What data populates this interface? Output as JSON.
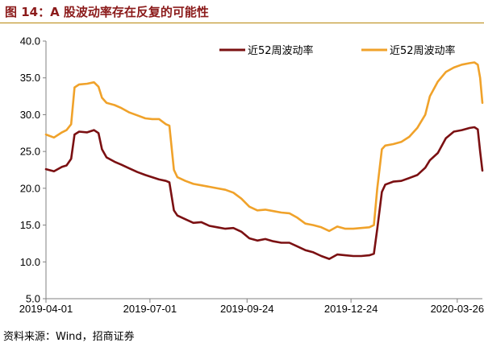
{
  "header": {
    "title": "图 14：A 股波动率存在反复的可能性"
  },
  "footer": {
    "source": "资料来源：Wind，招商证券"
  },
  "colors": {
    "title": "#8B1A1A",
    "rule": "#B8860B",
    "series_dark": "#7B1012",
    "series_light": "#F0A22A",
    "axis": "#808080"
  },
  "chart_data": {
    "type": "line",
    "title": "",
    "xlabel": "",
    "ylabel": "",
    "ylim": [
      5.0,
      40.0
    ],
    "yticks": [
      5.0,
      10.0,
      15.0,
      20.0,
      25.0,
      30.0,
      35.0,
      40.0
    ],
    "ytick_labels": [
      "5.0",
      "10.0",
      "15.0",
      "20.0",
      "25.0",
      "30.0",
      "35.0",
      "40.0"
    ],
    "xlim": [
      "2019-04-01",
      "2020-04-17"
    ],
    "xtick_labels": [
      "2019-04-01",
      "2019-07-01",
      "2019-09-24",
      "2019-12-24",
      "2020-03-26"
    ],
    "legend_position": "top",
    "grid": false,
    "series": [
      {
        "name": "近52周波动率",
        "color_key": "series_dark",
        "points": [
          [
            "2019-04-01",
            22.6
          ],
          [
            "2019-04-08",
            22.3
          ],
          [
            "2019-04-15",
            22.9
          ],
          [
            "2019-04-19",
            23.1
          ],
          [
            "2019-04-23",
            24.0
          ],
          [
            "2019-04-26",
            27.3
          ],
          [
            "2019-04-30",
            27.7
          ],
          [
            "2019-05-07",
            27.6
          ],
          [
            "2019-05-13",
            27.9
          ],
          [
            "2019-05-17",
            27.5
          ],
          [
            "2019-05-20",
            25.3
          ],
          [
            "2019-05-24",
            24.2
          ],
          [
            "2019-05-31",
            23.6
          ],
          [
            "2019-06-06",
            23.2
          ],
          [
            "2019-06-13",
            22.7
          ],
          [
            "2019-06-20",
            22.2
          ],
          [
            "2019-06-27",
            21.8
          ],
          [
            "2019-07-03",
            21.5
          ],
          [
            "2019-07-09",
            21.2
          ],
          [
            "2019-07-15",
            21.0
          ],
          [
            "2019-07-18",
            20.8
          ],
          [
            "2019-07-22",
            17.0
          ],
          [
            "2019-07-25",
            16.3
          ],
          [
            "2019-08-01",
            15.8
          ],
          [
            "2019-08-08",
            15.3
          ],
          [
            "2019-08-15",
            15.4
          ],
          [
            "2019-08-22",
            14.9
          ],
          [
            "2019-08-29",
            14.7
          ],
          [
            "2019-09-05",
            14.5
          ],
          [
            "2019-09-12",
            14.6
          ],
          [
            "2019-09-19",
            14.1
          ],
          [
            "2019-09-26",
            13.2
          ],
          [
            "2019-10-03",
            12.9
          ],
          [
            "2019-10-10",
            13.1
          ],
          [
            "2019-10-17",
            12.8
          ],
          [
            "2019-10-24",
            12.6
          ],
          [
            "2019-10-31",
            12.6
          ],
          [
            "2019-11-07",
            12.1
          ],
          [
            "2019-11-14",
            11.6
          ],
          [
            "2019-11-21",
            11.3
          ],
          [
            "2019-11-28",
            10.8
          ],
          [
            "2019-12-05",
            10.4
          ],
          [
            "2019-12-12",
            11.0
          ],
          [
            "2019-12-19",
            10.9
          ],
          [
            "2019-12-26",
            10.8
          ],
          [
            "2020-01-02",
            10.8
          ],
          [
            "2020-01-09",
            10.9
          ],
          [
            "2020-01-13",
            11.1
          ],
          [
            "2020-01-16",
            14.5
          ],
          [
            "2020-01-20",
            19.5
          ],
          [
            "2020-01-23",
            20.5
          ],
          [
            "2020-01-30",
            20.9
          ],
          [
            "2020-02-06",
            21.0
          ],
          [
            "2020-02-13",
            21.4
          ],
          [
            "2020-02-20",
            21.8
          ],
          [
            "2020-02-27",
            22.8
          ],
          [
            "2020-03-02",
            23.8
          ],
          [
            "2020-03-09",
            24.8
          ],
          [
            "2020-03-16",
            26.8
          ],
          [
            "2020-03-23",
            27.7
          ],
          [
            "2020-03-30",
            27.9
          ],
          [
            "2020-04-06",
            28.2
          ],
          [
            "2020-04-10",
            28.3
          ],
          [
            "2020-04-13",
            28.0
          ],
          [
            "2020-04-15",
            25.0
          ],
          [
            "2020-04-17",
            22.4
          ]
        ]
      },
      {
        "name": "近52周波动率",
        "color_key": "series_light",
        "points": [
          [
            "2019-04-01",
            27.3
          ],
          [
            "2019-04-08",
            26.9
          ],
          [
            "2019-04-15",
            27.6
          ],
          [
            "2019-04-19",
            27.9
          ],
          [
            "2019-04-23",
            28.7
          ],
          [
            "2019-04-26",
            33.7
          ],
          [
            "2019-04-30",
            34.1
          ],
          [
            "2019-05-07",
            34.2
          ],
          [
            "2019-05-13",
            34.4
          ],
          [
            "2019-05-17",
            33.8
          ],
          [
            "2019-05-20",
            32.3
          ],
          [
            "2019-05-24",
            31.6
          ],
          [
            "2019-05-31",
            31.3
          ],
          [
            "2019-06-06",
            30.9
          ],
          [
            "2019-06-13",
            30.3
          ],
          [
            "2019-06-20",
            29.9
          ],
          [
            "2019-06-27",
            29.5
          ],
          [
            "2019-07-03",
            29.4
          ],
          [
            "2019-07-09",
            29.4
          ],
          [
            "2019-07-15",
            28.7
          ],
          [
            "2019-07-18",
            28.5
          ],
          [
            "2019-07-22",
            22.5
          ],
          [
            "2019-07-25",
            21.5
          ],
          [
            "2019-08-01",
            21.0
          ],
          [
            "2019-08-08",
            20.6
          ],
          [
            "2019-08-15",
            20.4
          ],
          [
            "2019-08-22",
            20.2
          ],
          [
            "2019-08-29",
            20.0
          ],
          [
            "2019-09-05",
            19.8
          ],
          [
            "2019-09-12",
            19.4
          ],
          [
            "2019-09-19",
            18.6
          ],
          [
            "2019-09-26",
            17.5
          ],
          [
            "2019-10-03",
            17.0
          ],
          [
            "2019-10-10",
            17.1
          ],
          [
            "2019-10-17",
            16.9
          ],
          [
            "2019-10-24",
            16.7
          ],
          [
            "2019-10-31",
            16.6
          ],
          [
            "2019-11-07",
            16.0
          ],
          [
            "2019-11-14",
            15.2
          ],
          [
            "2019-11-21",
            15.0
          ],
          [
            "2019-11-28",
            14.7
          ],
          [
            "2019-12-05",
            14.2
          ],
          [
            "2019-12-12",
            14.8
          ],
          [
            "2019-12-19",
            14.5
          ],
          [
            "2019-12-26",
            14.5
          ],
          [
            "2020-01-02",
            14.6
          ],
          [
            "2020-01-09",
            14.7
          ],
          [
            "2020-01-13",
            15.0
          ],
          [
            "2020-01-16",
            20.0
          ],
          [
            "2020-01-20",
            25.3
          ],
          [
            "2020-01-23",
            25.8
          ],
          [
            "2020-01-30",
            26.0
          ],
          [
            "2020-02-06",
            26.3
          ],
          [
            "2020-02-13",
            27.0
          ],
          [
            "2020-02-20",
            28.2
          ],
          [
            "2020-02-27",
            30.0
          ],
          [
            "2020-03-02",
            32.5
          ],
          [
            "2020-03-09",
            34.5
          ],
          [
            "2020-03-16",
            35.8
          ],
          [
            "2020-03-23",
            36.4
          ],
          [
            "2020-03-30",
            36.8
          ],
          [
            "2020-04-06",
            37.0
          ],
          [
            "2020-04-10",
            37.1
          ],
          [
            "2020-04-13",
            36.8
          ],
          [
            "2020-04-15",
            35.0
          ],
          [
            "2020-04-17",
            31.6
          ]
        ]
      }
    ]
  }
}
